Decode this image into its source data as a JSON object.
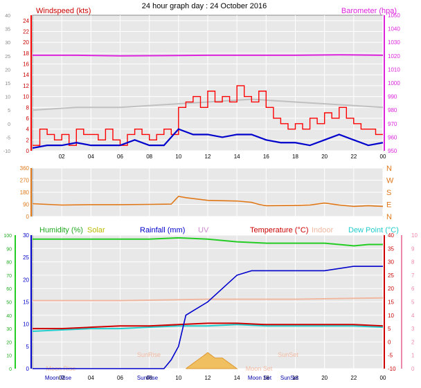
{
  "title": "24 hour graph day : 24 October 2016",
  "x_ticks": [
    "02",
    "04",
    "06",
    "08",
    "10",
    "12",
    "14",
    "16",
    "18",
    "20",
    "22",
    "00"
  ],
  "x_ticks_bottom": [
    "Moon Rise",
    "02",
    "04",
    "06",
    "SunRise",
    "08",
    "10",
    "12",
    "14",
    "Moon Set",
    "SunSet",
    "16",
    "18",
    "20",
    "22",
    "00"
  ],
  "colors": {
    "wind": "#ff0000",
    "gust_avg": "#0000cc",
    "gust_max": "#c0c0c0",
    "barometer": "#dd22dd",
    "direction": "#e07818",
    "humidity": "#22cc22",
    "solar": "#cccc00",
    "rainfall": "#0000cc",
    "uv": "#cc88cc",
    "temperature": "#cc0000",
    "indoor": "#f0b8a0",
    "dewpoint": "#22cccc",
    "plot_bg": "#e8e8e8"
  },
  "chart_data": [
    {
      "type": "line",
      "name": "wind",
      "legend": [
        "Windspeed (kts)",
        "Barometer (hpa)"
      ],
      "left_ticks": [
        "24",
        "22",
        "20",
        "18",
        "16",
        "14",
        "12",
        "10",
        "8",
        "6",
        "4",
        "2",
        "0"
      ],
      "left_outer_ticks": [
        "40",
        "35",
        "30",
        "25",
        "20",
        "15",
        "10",
        "5",
        "0",
        "-5",
        "-10"
      ],
      "right_ticks": [
        "1050",
        "1040",
        "1030",
        "1020",
        "1010",
        "1000",
        "990",
        "980",
        "970",
        "960",
        "950"
      ],
      "ylim": [
        0,
        25
      ],
      "ylim_right": [
        950,
        1050
      ],
      "series": [
        {
          "name": "Windspeed (kts)",
          "x": [
            0,
            0.5,
            1,
            1.5,
            2,
            2.5,
            3,
            3.5,
            4,
            4.5,
            5,
            5.5,
            6,
            6.5,
            7,
            7.5,
            8,
            8.5,
            9,
            9.5,
            10,
            10.5,
            11,
            11.5,
            12,
            12.5,
            13,
            13.5,
            14,
            14.5,
            15,
            15.5,
            16,
            16.5,
            17,
            17.5,
            18,
            18.5,
            19,
            19.5,
            20,
            20.5,
            21,
            21.5,
            22,
            22.5,
            23,
            23.5,
            24
          ],
          "values": [
            1,
            4,
            3,
            2,
            3,
            1,
            4,
            3,
            3,
            2,
            4,
            2,
            1,
            3,
            4,
            3,
            2,
            3,
            4,
            3,
            8,
            9,
            10,
            8,
            11,
            9,
            10,
            9,
            12,
            10,
            9,
            11,
            8,
            6,
            5,
            4,
            5,
            4,
            6,
            5,
            7,
            6,
            8,
            6,
            5,
            4,
            4,
            3,
            3
          ]
        },
        {
          "name": "Average",
          "x": [
            0,
            1,
            2,
            3,
            4,
            5,
            6,
            7,
            8,
            9,
            10,
            11,
            12,
            13,
            14,
            15,
            16,
            17,
            18,
            19,
            20,
            21,
            22,
            23,
            24
          ],
          "values": [
            0.5,
            1,
            1,
            1.5,
            1,
            1,
            1,
            2,
            1,
            1,
            4,
            3,
            3,
            2.5,
            3,
            3,
            2,
            1.5,
            1.5,
            1,
            2,
            3,
            2,
            1,
            1.5
          ]
        },
        {
          "name": "Barometer (hpa)",
          "x": [
            0,
            3,
            6,
            9,
            12,
            15,
            18,
            21,
            24
          ],
          "values": [
            1020.5,
            1020.5,
            1020,
            1020.2,
            1020.5,
            1020.5,
            1020.5,
            1020.8,
            1020.5
          ]
        },
        {
          "name": "Max gust",
          "x": [
            0,
            3,
            6,
            9,
            12,
            15,
            18,
            21,
            24
          ],
          "values": [
            7.5,
            8,
            8,
            8.5,
            9,
            9.5,
            9,
            8.5,
            8
          ]
        }
      ]
    },
    {
      "type": "line",
      "name": "direction",
      "left_ticks": [
        "360",
        "270",
        "180",
        "90",
        "0"
      ],
      "right_labels": [
        "N",
        "W",
        "S",
        "E",
        "N"
      ],
      "ylim": [
        0,
        360
      ],
      "series": [
        {
          "name": "Direction",
          "x": [
            0,
            1,
            2,
            4,
            6,
            8,
            9.5,
            10,
            10.5,
            12,
            14,
            15,
            15.5,
            16,
            18,
            19,
            20,
            21,
            22,
            23,
            24
          ],
          "values": [
            95,
            90,
            85,
            88,
            88,
            90,
            92,
            150,
            140,
            120,
            115,
            105,
            90,
            80,
            82,
            85,
            100,
            85,
            75,
            80,
            75
          ]
        }
      ]
    },
    {
      "type": "line",
      "name": "humidity-temperature",
      "legend": [
        "Humidity (%)",
        "Solar",
        "Rainfall (mm)",
        "UV",
        "Temperature (°C)",
        "Indoor",
        "Dew Point (°C)"
      ],
      "left_outer_ticks": [
        "100",
        "90",
        "80",
        "70",
        "60",
        "50",
        "40",
        "30",
        "20",
        "10",
        "0"
      ],
      "left_ticks": [
        "30",
        "25",
        "20",
        "15",
        "10",
        "5",
        "0"
      ],
      "right_ticks": [
        "40",
        "35",
        "30",
        "25",
        "20",
        "15",
        "10",
        "5",
        "0",
        "-5",
        "-10"
      ],
      "right_outer_ticks": [
        "10",
        "9",
        "8",
        "7",
        "6",
        "5",
        "4",
        "3",
        "2",
        "1",
        "0"
      ],
      "event_labels": [
        "Moon Rise",
        "SunRise",
        "SunSet",
        "Moon Set"
      ],
      "ylim_rain": [
        0,
        30
      ],
      "ylim_temp": [
        -10,
        40
      ],
      "series": [
        {
          "name": "Humidity (%)",
          "x": [
            0,
            2,
            4,
            6,
            8,
            10,
            12,
            14,
            16,
            18,
            20,
            21,
            22,
            23,
            24
          ],
          "values": [
            97,
            97,
            97,
            97,
            97,
            98,
            97,
            95,
            94,
            94,
            94,
            93,
            92,
            93,
            93
          ]
        },
        {
          "name": "Rainfall (mm)",
          "x": [
            0,
            9,
            9.5,
            10,
            10.5,
            11,
            12,
            13,
            14,
            15,
            16,
            18,
            20,
            22,
            24
          ],
          "values": [
            0,
            0,
            2,
            5,
            12,
            13,
            15,
            18,
            21,
            22,
            22,
            22,
            22,
            23,
            23
          ]
        },
        {
          "name": "Temperature (°C)",
          "x": [
            0,
            2,
            4,
            6,
            8,
            10,
            12,
            14,
            16,
            18,
            20,
            22,
            24
          ],
          "values": [
            5,
            5,
            5.5,
            6,
            6,
            6.5,
            7,
            7,
            6.5,
            6.5,
            6.5,
            6.5,
            6
          ]
        },
        {
          "name": "Indoor",
          "x": [
            0,
            6,
            12,
            18,
            24
          ],
          "values": [
            15.5,
            15.5,
            16,
            16,
            16.5
          ]
        },
        {
          "name": "Dew Point (°C)",
          "x": [
            0,
            2,
            4,
            6,
            8,
            10,
            12,
            14,
            16,
            18,
            20,
            22,
            24
          ],
          "values": [
            4,
            4.5,
            5,
            5,
            5.5,
            6,
            6,
            6.5,
            6,
            6,
            6,
            6,
            5.5
          ]
        },
        {
          "name": "Solar",
          "x": [
            10.5,
            11,
            11.5,
            12,
            12.5,
            13,
            13.5,
            14
          ],
          "values": [
            0,
            1,
            2,
            3,
            2,
            2,
            1,
            0
          ]
        }
      ]
    }
  ]
}
